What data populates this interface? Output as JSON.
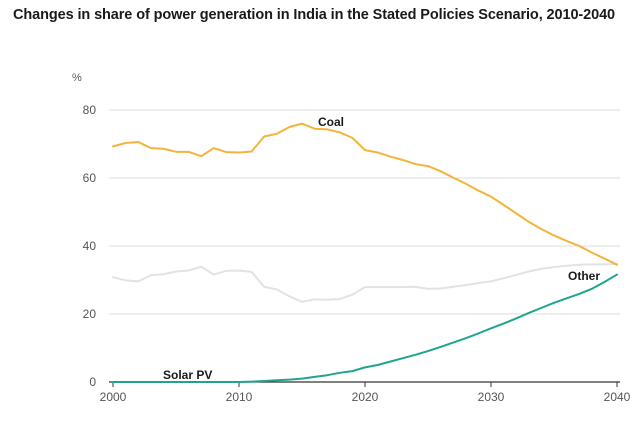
{
  "chart_data": {
    "type": "line",
    "title": "Changes in share of power generation in India in the Stated Policies Scenario, 2010-2040",
    "ylabel": "%",
    "xlabel": "",
    "xlim": [
      2000,
      2040
    ],
    "ylim": [
      0,
      80
    ],
    "x_ticks": [
      "2000",
      "2010",
      "2020",
      "2030",
      "2040"
    ],
    "y_ticks": [
      "0",
      "20",
      "40",
      "60",
      "80"
    ],
    "grid": "horizontal",
    "series": [
      {
        "name": "Coal",
        "color": "#f2b53c",
        "x": [
          2000,
          2001,
          2002,
          2003,
          2004,
          2005,
          2006,
          2007,
          2008,
          2009,
          2010,
          2011,
          2012,
          2013,
          2014,
          2015,
          2016,
          2017,
          2018,
          2019,
          2020,
          2021,
          2022,
          2023,
          2024,
          2025,
          2026,
          2027,
          2028,
          2029,
          2030,
          2031,
          2032,
          2033,
          2034,
          2035,
          2036,
          2037,
          2038,
          2039,
          2040
        ],
        "values": [
          69.3,
          70.3,
          70.6,
          68.8,
          68.6,
          67.7,
          67.7,
          66.4,
          68.8,
          67.6,
          67.5,
          67.8,
          72.2,
          73.0,
          75.0,
          76.0,
          74.5,
          74.3,
          73.4,
          71.8,
          68.2,
          67.5,
          66.3,
          65.3,
          64.1,
          63.5,
          62.0,
          60.1,
          58.3,
          56.3,
          54.5,
          52.1,
          49.6,
          47.1,
          45.0,
          43.1,
          41.5,
          40.0,
          38.1,
          36.3,
          34.5
        ]
      },
      {
        "name": "Other",
        "color": "#e3e3e3",
        "x": [
          2000,
          2001,
          2002,
          2003,
          2004,
          2005,
          2006,
          2007,
          2008,
          2009,
          2010,
          2011,
          2012,
          2013,
          2014,
          2015,
          2016,
          2017,
          2018,
          2019,
          2020,
          2021,
          2022,
          2023,
          2024,
          2025,
          2026,
          2027,
          2028,
          2029,
          2030,
          2031,
          2032,
          2033,
          2034,
          2035,
          2036,
          2037,
          2038,
          2039,
          2040
        ],
        "values": [
          30.8,
          29.9,
          29.6,
          31.4,
          31.7,
          32.5,
          32.8,
          33.9,
          31.6,
          32.7,
          32.8,
          32.4,
          28.0,
          27.2,
          25.2,
          23.6,
          24.3,
          24.2,
          24.4,
          25.7,
          27.9,
          27.9,
          27.9,
          27.9,
          28.0,
          27.4,
          27.5,
          28.0,
          28.5,
          29.1,
          29.6,
          30.5,
          31.5,
          32.5,
          33.3,
          33.8,
          34.2,
          34.5,
          34.6,
          34.6,
          34.7
        ]
      },
      {
        "name": "Solar PV",
        "color": "#1fa58f",
        "x": [
          2000,
          2001,
          2002,
          2003,
          2004,
          2005,
          2006,
          2007,
          2008,
          2009,
          2010,
          2011,
          2012,
          2013,
          2014,
          2015,
          2016,
          2017,
          2018,
          2019,
          2020,
          2021,
          2022,
          2023,
          2024,
          2025,
          2026,
          2027,
          2028,
          2029,
          2030,
          2031,
          2032,
          2033,
          2034,
          2035,
          2036,
          2037,
          2038,
          2039,
          2040
        ],
        "values": [
          0,
          0,
          0,
          0,
          0,
          0,
          0,
          0,
          0,
          0,
          0,
          0.1,
          0.3,
          0.5,
          0.7,
          1.0,
          1.5,
          2.0,
          2.7,
          3.2,
          4.3,
          5.0,
          6.0,
          7.0,
          8.0,
          9.1,
          10.3,
          11.6,
          12.9,
          14.3,
          15.8,
          17.2,
          18.7,
          20.3,
          21.8,
          23.3,
          24.6,
          25.9,
          27.4,
          29.4,
          31.6
        ]
      }
    ],
    "annotations": [
      "Coal",
      "Other",
      "Solar PV"
    ]
  }
}
